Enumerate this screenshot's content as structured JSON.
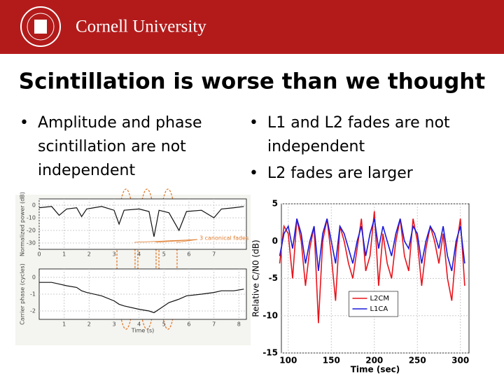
{
  "header": {
    "logo_text": "Cornell University"
  },
  "title": "Scintillation is worse than we thought",
  "left_bullets": [
    "Amplitude and phase scintillation are not independent"
  ],
  "right_bullets": [
    "L1 and L2 fades are not independent",
    "L2 fades are larger"
  ],
  "chart_data": [
    {
      "type": "line",
      "ylabel": "Normalized power (dB)",
      "annotation": "3 canonical fades",
      "x": [
        0,
        0.5,
        0.8,
        1.1,
        1.5,
        1.7,
        1.9,
        2.5,
        3.0,
        3.2,
        3.4,
        4.0,
        4.4,
        4.6,
        4.8,
        5.2,
        5.6,
        5.9,
        6.5,
        7.0,
        7.3,
        7.8,
        8.2
      ],
      "values": [
        -2,
        -1,
        -8,
        -3,
        -2,
        -9,
        -3,
        -1,
        -4,
        -15,
        -4,
        -3,
        -5,
        -25,
        -4,
        -6,
        -20,
        -5,
        -4,
        -10,
        -3,
        -2,
        -1
      ],
      "color": "#111111",
      "xlim": [
        0,
        8.3
      ],
      "xticks": [
        0,
        1,
        2,
        3,
        4,
        5,
        6,
        7
      ],
      "ylim": [
        -35,
        5
      ],
      "yticks": [
        0,
        -10,
        -20,
        -30
      ],
      "grid": true
    },
    {
      "type": "line",
      "ylabel": "Carrier phase (cycles)",
      "xlabel": "Time (s)",
      "x": [
        0,
        0.5,
        0.8,
        1.1,
        1.5,
        1.7,
        1.9,
        2.5,
        3.0,
        3.2,
        3.4,
        4.0,
        4.4,
        4.6,
        4.8,
        5.2,
        5.6,
        5.9,
        6.5,
        7.0,
        7.3,
        7.8,
        8.2
      ],
      "values": [
        -0.3,
        -0.3,
        -0.4,
        -0.5,
        -0.6,
        -0.8,
        -0.9,
        -1.1,
        -1.4,
        -1.6,
        -1.7,
        -1.9,
        -2.0,
        -2.1,
        -1.9,
        -1.5,
        -1.3,
        -1.1,
        -1.0,
        -0.9,
        -0.8,
        -0.8,
        -0.7
      ],
      "color": "#111111",
      "xlim": [
        0,
        8.3
      ],
      "xticks": [
        1,
        2,
        3,
        4,
        5,
        6,
        7,
        8
      ],
      "ylim": [
        -2.5,
        0.5
      ],
      "yticks": [
        0,
        -1,
        -2
      ],
      "grid": true
    },
    {
      "type": "line",
      "ylabel": "Relative C/N0 (dB)",
      "xlabel": "Time (sec)",
      "x": [
        90,
        95,
        100,
        105,
        110,
        115,
        120,
        125,
        130,
        135,
        140,
        145,
        150,
        155,
        160,
        165,
        170,
        175,
        180,
        185,
        190,
        195,
        200,
        205,
        210,
        215,
        220,
        225,
        230,
        235,
        240,
        245,
        250,
        255,
        260,
        265,
        270,
        275,
        280,
        285,
        290,
        295,
        300,
        305
      ],
      "series": [
        {
          "name": "L2CM",
          "color": "#e8141c",
          "values": [
            -3,
            2,
            1,
            -5,
            3,
            0,
            -6,
            -1,
            2,
            -11,
            0,
            3,
            -2,
            -8,
            2,
            0,
            -3,
            -5,
            -1,
            3,
            -4,
            -2,
            4,
            -6,
            1,
            -3,
            -5,
            0,
            3,
            -2,
            -4,
            3,
            0,
            -6,
            -1,
            2,
            0,
            -3,
            1,
            -5,
            -8,
            -1,
            3,
            -6
          ]
        },
        {
          "name": "L1CA",
          "color": "#1a1adc",
          "values": [
            -2,
            1,
            2,
            -1,
            3,
            1,
            -3,
            0,
            2,
            -4,
            1,
            3,
            0,
            -3,
            2,
            1,
            -1,
            -3,
            0,
            2,
            -2,
            1,
            3,
            -1,
            2,
            0,
            -2,
            1,
            3,
            0,
            -1,
            2,
            1,
            -3,
            0,
            2,
            1,
            -1,
            2,
            -2,
            -4,
            0,
            2,
            -3
          ]
        }
      ],
      "xlim": [
        92,
        310
      ],
      "xticks": [
        100,
        150,
        200,
        250,
        300
      ],
      "ylim": [
        -15,
        5
      ],
      "yticks": [
        -15,
        -10,
        -5,
        0,
        5
      ],
      "grid": true,
      "legend": "lower right"
    }
  ]
}
